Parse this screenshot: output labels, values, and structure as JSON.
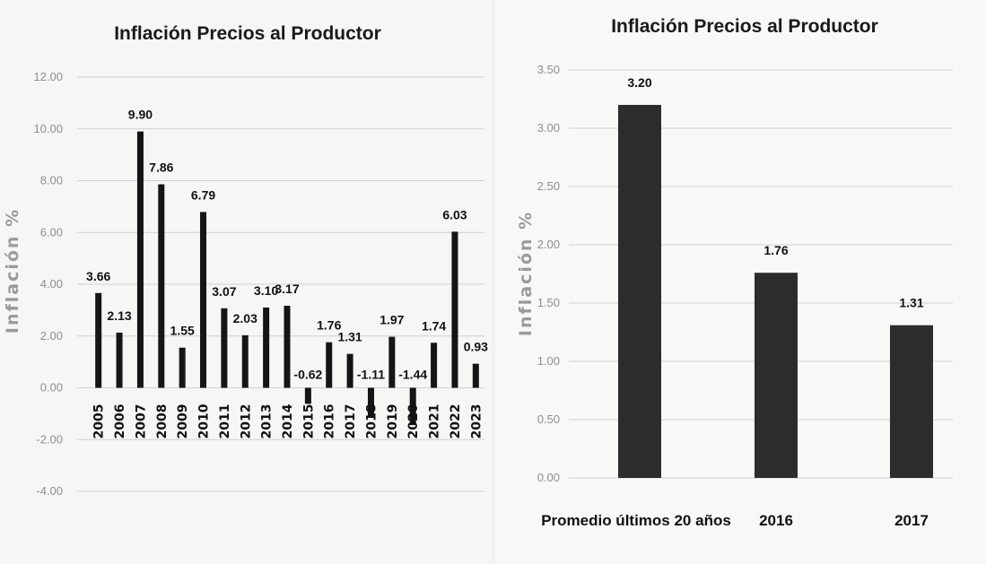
{
  "chart_data": [
    {
      "type": "bar",
      "title": "Inflación Precios al Productor",
      "ylabel": "Inflación %",
      "xlabel": "",
      "ylim": [
        -4,
        12
      ],
      "yticks": [
        "12.00",
        "10.00",
        "8.00",
        "6.00",
        "4.00",
        "2.00",
        "0.00",
        "-2.00",
        "-4.00"
      ],
      "grid": true,
      "categories": [
        "2005",
        "2006",
        "2007",
        "2008",
        "2009",
        "2010",
        "2011",
        "2012",
        "2013",
        "2014",
        "2015",
        "2016",
        "2017",
        "2018",
        "2019",
        "2020",
        "2021",
        "2022",
        "2023"
      ],
      "values": [
        3.66,
        2.13,
        9.9,
        7.86,
        1.55,
        6.79,
        3.07,
        2.03,
        3.1,
        3.17,
        -0.62,
        1.76,
        1.31,
        -1.11,
        1.97,
        -1.44,
        1.74,
        6.03,
        0.93
      ],
      "data_labels": [
        "3.66",
        "2.13",
        "9.90",
        "7.86",
        "1.55",
        "6.79",
        "3.07",
        "2.03",
        "3.10",
        "3.17",
        "-0.62",
        "1.76",
        "1.31",
        "-1.11",
        "1.97",
        "-1.44",
        "1.74",
        "6.03",
        "0.93"
      ],
      "bar_color": "#151515"
    },
    {
      "type": "bar",
      "title": "Inflación Precios al Productor",
      "ylabel": "Inflación %",
      "xlabel": "",
      "ylim": [
        0,
        3.5
      ],
      "yticks": [
        "3.50",
        "3.00",
        "2.50",
        "2.00",
        "1.50",
        "1.00",
        "0.50",
        "0.00"
      ],
      "grid": true,
      "categories": [
        "Promedio últimos 20 años",
        "2016",
        "2017"
      ],
      "values": [
        3.2,
        1.76,
        1.31
      ],
      "data_labels": [
        "3.20",
        "1.76",
        "1.31"
      ],
      "bar_color": "#2c2c2c"
    }
  ]
}
